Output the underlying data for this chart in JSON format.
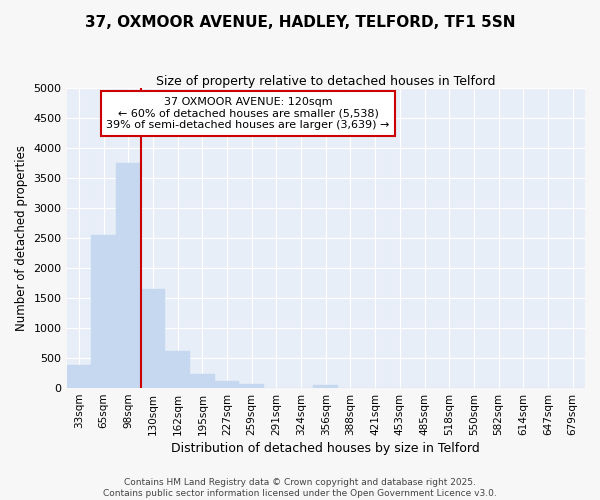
{
  "title_line1": "37, OXMOOR AVENUE, HADLEY, TELFORD, TF1 5SN",
  "title_line2": "Size of property relative to detached houses in Telford",
  "xlabel": "Distribution of detached houses by size in Telford",
  "ylabel": "Number of detached properties",
  "bar_color": "#c5d8f0",
  "bar_edgecolor": "#c5d8f0",
  "plot_bg_color": "#e8eef8",
  "fig_bg_color": "#f7f7f7",
  "grid_color": "#ffffff",
  "property_label": "37 OXMOOR AVENUE: 120sqm",
  "annotation_line1": "← 60% of detached houses are smaller (5,538)",
  "annotation_line2": "39% of semi-detached houses are larger (3,639) →",
  "vline_color": "#cc0000",
  "categories": [
    "33sqm",
    "65sqm",
    "98sqm",
    "130sqm",
    "162sqm",
    "195sqm",
    "227sqm",
    "259sqm",
    "291sqm",
    "324sqm",
    "356sqm",
    "388sqm",
    "421sqm",
    "453sqm",
    "485sqm",
    "518sqm",
    "550sqm",
    "582sqm",
    "614sqm",
    "647sqm",
    "679sqm"
  ],
  "values": [
    380,
    2550,
    3750,
    1650,
    620,
    240,
    120,
    60,
    0,
    0,
    50,
    0,
    0,
    0,
    0,
    0,
    0,
    0,
    0,
    0,
    0
  ],
  "ylim": [
    0,
    5000
  ],
  "yticks": [
    0,
    500,
    1000,
    1500,
    2000,
    2500,
    3000,
    3500,
    4000,
    4500,
    5000
  ],
  "vline_position": 2.5,
  "footer_line1": "Contains HM Land Registry data © Crown copyright and database right 2025.",
  "footer_line2": "Contains public sector information licensed under the Open Government Licence v3.0."
}
